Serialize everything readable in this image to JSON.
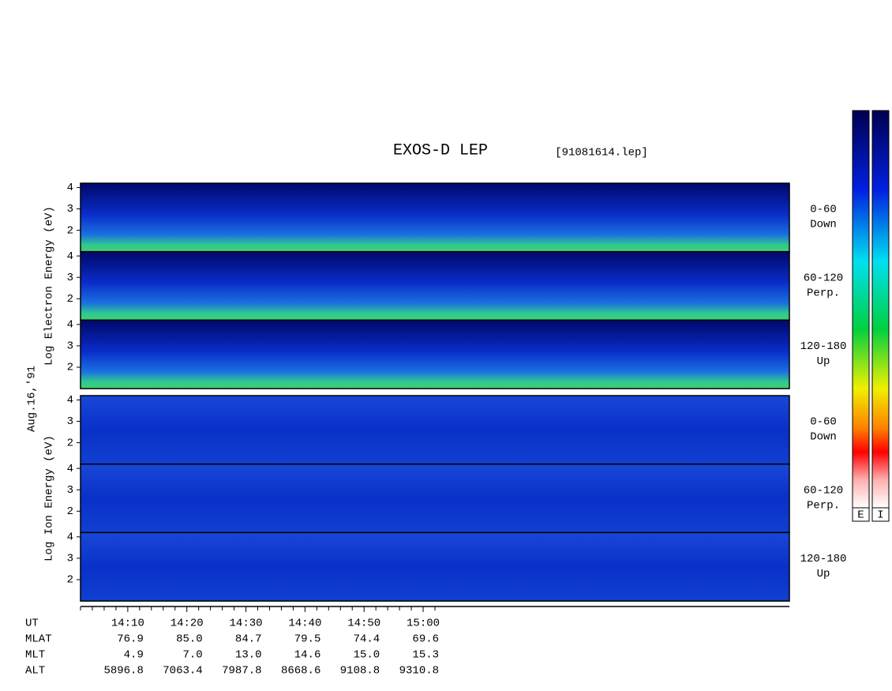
{
  "chart_data": {
    "type": "spectrogram",
    "title": "EXOS-D LEP",
    "file_label": "[91081614.lep]",
    "date_label": "Aug.16,'91",
    "groups": [
      {
        "label": "Log Electron Energy (eV)",
        "panels": [
          {
            "pitch": "0-60",
            "direction": "Down"
          },
          {
            "pitch": "60-120",
            "direction": "Perp."
          },
          {
            "pitch": "120-180",
            "direction": "Up"
          }
        ]
      },
      {
        "label": "Log Ion Energy (eV)",
        "panels": [
          {
            "pitch": "0-60",
            "direction": "Down"
          },
          {
            "pitch": "60-120",
            "direction": "Perp."
          },
          {
            "pitch": "120-180",
            "direction": "Up"
          }
        ]
      }
    ],
    "ylim": [
      1,
      4.2
    ],
    "yticks": [
      2,
      3,
      4
    ],
    "xlim": [
      842,
      962
    ],
    "x_label": "UT",
    "xticks": [
      {
        "value": 850,
        "label": "14:10"
      },
      {
        "value": 860,
        "label": "14:20"
      },
      {
        "value": 870,
        "label": "14:30"
      },
      {
        "value": 880,
        "label": "14:40"
      },
      {
        "value": 890,
        "label": "14:50"
      },
      {
        "value": 900,
        "label": "15:00"
      }
    ],
    "xminorticks": [
      842,
      844,
      846,
      848,
      852,
      854,
      856,
      858,
      862,
      864,
      866,
      868,
      872,
      874,
      876,
      878,
      882,
      884,
      886,
      888,
      892,
      894,
      896,
      898,
      902
    ],
    "ephemeris": [
      {
        "label": "MLAT",
        "values": [
          "76.9",
          "85.0",
          "84.7",
          "79.5",
          "74.4",
          "69.6"
        ]
      },
      {
        "label": "MLT",
        "values": [
          "4.9",
          "7.0",
          "13.0",
          "14.6",
          "15.0",
          "15.3"
        ]
      },
      {
        "label": "ALT",
        "values": [
          "5896.8",
          "7063.4",
          "7987.8",
          "8668.6",
          "9108.8",
          "9310.8"
        ]
      }
    ],
    "colorbars": [
      "E",
      "I"
    ]
  }
}
